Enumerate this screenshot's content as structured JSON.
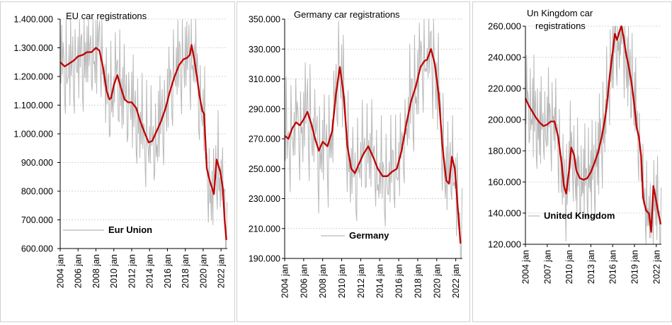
{
  "colors": {
    "trend": "#c00000",
    "monthly": "#b8b8b8",
    "grid": "#c8c8c8",
    "axis": "#000000",
    "text": "#000000"
  },
  "chart_data": [
    {
      "id": "eu",
      "type": "line",
      "title": "EU  car registrations",
      "title2": "",
      "legend_label": "Eur Union",
      "y_ticks": [
        "600.000",
        "700.000",
        "800.000",
        "900.000",
        "1.000.000",
        "1.100.000",
        "1.200.000",
        "1.300.000",
        "1.400.000"
      ],
      "ylim": [
        600000,
        1400000
      ],
      "x_ticks": [
        "2004 jan",
        "2006 jan",
        "2008 jan",
        "2010 jan",
        "2012 jan",
        "2014 jan",
        "2016 jan",
        "2018 jan",
        "2020 jan",
        "2022 jan"
      ],
      "xlim": [
        2004.0,
        2022.7
      ],
      "series": [
        {
          "kind": "trend",
          "x": [
            2004.0,
            2004.5,
            2005.0,
            2005.5,
            2006.0,
            2006.5,
            2007.0,
            2007.5,
            2008.0,
            2008.4,
            2008.8,
            2009.2,
            2009.5,
            2009.7,
            2010.0,
            2010.4,
            2010.8,
            2011.2,
            2011.6,
            2012.0,
            2012.5,
            2013.0,
            2013.5,
            2013.9,
            2014.3,
            2014.8,
            2015.3,
            2015.8,
            2016.3,
            2016.8,
            2017.3,
            2017.8,
            2018.2,
            2018.5,
            2018.7,
            2019.0,
            2019.3,
            2019.6,
            2019.9,
            2020.1,
            2020.4,
            2020.7,
            2021.0,
            2021.2,
            2021.5,
            2021.9,
            2022.2,
            2022.4,
            2022.6
          ],
          "y": [
            1250000,
            1235000,
            1245000,
            1255000,
            1270000,
            1275000,
            1285000,
            1285000,
            1300000,
            1290000,
            1230000,
            1150000,
            1120000,
            1125000,
            1170000,
            1205000,
            1160000,
            1120000,
            1110000,
            1110000,
            1090000,
            1040000,
            1000000,
            970000,
            975000,
            1010000,
            1045000,
            1090000,
            1150000,
            1200000,
            1240000,
            1260000,
            1265000,
            1275000,
            1310000,
            1260000,
            1200000,
            1130000,
            1080000,
            1070000,
            880000,
            840000,
            810000,
            790000,
            910000,
            870000,
            810000,
            700000,
            630000
          ]
        }
      ]
    },
    {
      "id": "de",
      "type": "line",
      "title": "Germany car registrations",
      "title2": "",
      "legend_label": "Germany",
      "y_ticks": [
        "190.000",
        "210.000",
        "230.000",
        "250.000",
        "270.000",
        "290.000",
        "310.000",
        "330.000",
        "350.000"
      ],
      "ylim": [
        190000,
        350000
      ],
      "x_ticks": [
        "2004 jan",
        "2006 jan",
        "2008 jan",
        "2010 jan",
        "2012 jan",
        "2014 jan",
        "2016 jan",
        "2018 jan",
        "2020 jan",
        "2022 jan"
      ],
      "xlim": [
        2004.0,
        2022.7
      ],
      "series": [
        {
          "kind": "trend",
          "x": [
            2004.0,
            2004.4,
            2004.8,
            2005.2,
            2005.6,
            2006.0,
            2006.4,
            2006.8,
            2007.2,
            2007.6,
            2008.0,
            2008.5,
            2009.0,
            2009.4,
            2009.8,
            2010.2,
            2010.6,
            2011.0,
            2011.4,
            2011.8,
            2012.3,
            2012.8,
            2013.3,
            2013.8,
            2014.3,
            2014.8,
            2015.3,
            2015.8,
            2016.3,
            2016.8,
            2017.3,
            2017.8,
            2018.3,
            2018.7,
            2019.0,
            2019.4,
            2019.8,
            2020.2,
            2020.6,
            2021.0,
            2021.3,
            2021.6,
            2021.9,
            2022.2,
            2022.5
          ],
          "y": [
            272000,
            270000,
            277000,
            281000,
            279000,
            283000,
            288000,
            280000,
            270000,
            262000,
            268000,
            265000,
            275000,
            300000,
            318000,
            300000,
            265000,
            250000,
            247000,
            253000,
            260000,
            265000,
            258000,
            250000,
            245000,
            245000,
            248000,
            250000,
            262000,
            280000,
            295000,
            305000,
            318000,
            322000,
            323000,
            330000,
            320000,
            300000,
            265000,
            242000,
            240000,
            258000,
            250000,
            225000,
            200000
          ]
        }
      ]
    },
    {
      "id": "uk",
      "type": "line",
      "title": "Un Kingdom car",
      "title2": "registrations",
      "legend_label": "United Kingdom",
      "y_ticks": [
        "120.000",
        "140.000",
        "160.000",
        "180.000",
        "200.000",
        "220.000",
        "240.000",
        "260.000"
      ],
      "ylim": [
        120000,
        262000
      ],
      "x_ticks": [
        "2004 jan",
        "2007 jan",
        "2010 jan",
        "2013 jan",
        "2016 jan",
        "2019 jan",
        "2022 jan"
      ],
      "xlim": [
        2004.0,
        2022.7
      ],
      "series": [
        {
          "kind": "trend",
          "x": [
            2004.0,
            2004.5,
            2005.0,
            2005.5,
            2006.0,
            2006.5,
            2007.0,
            2007.5,
            2008.0,
            2008.5,
            2009.0,
            2009.3,
            2009.6,
            2010.0,
            2010.3,
            2010.7,
            2011.0,
            2011.5,
            2012.0,
            2012.5,
            2013.0,
            2013.5,
            2014.0,
            2014.5,
            2015.0,
            2015.3,
            2015.6,
            2016.0,
            2016.3,
            2016.6,
            2016.9,
            2017.2,
            2017.5,
            2017.8,
            2018.2,
            2018.6,
            2019.0,
            2019.3,
            2019.6,
            2019.9,
            2020.2,
            2020.6,
            2021.0,
            2021.3,
            2021.6,
            2022.0,
            2022.3,
            2022.6
          ],
          "y": [
            215000,
            210000,
            206000,
            202000,
            199000,
            197000,
            198000,
            200000,
            200000,
            190000,
            172000,
            158000,
            153000,
            168000,
            183000,
            178000,
            168000,
            163000,
            162000,
            163000,
            167000,
            173000,
            180000,
            190000,
            203000,
            215000,
            230000,
            245000,
            257000,
            253000,
            258000,
            262000,
            255000,
            245000,
            236000,
            225000,
            210000,
            196000,
            190000,
            178000,
            150000,
            142000,
            140000,
            128000,
            158000,
            148000,
            140000,
            133000
          ]
        }
      ]
    }
  ]
}
